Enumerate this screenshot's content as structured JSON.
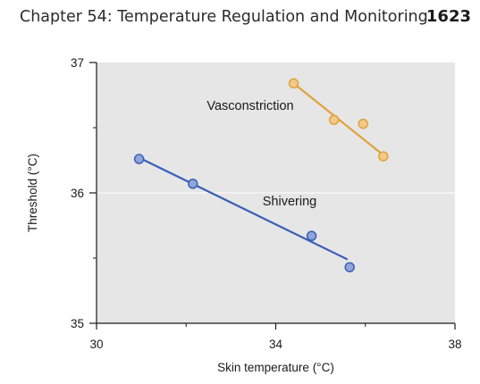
{
  "header": {
    "chapter_title": "Chapter 54: Temperature Regulation and Monitoring",
    "page_number": "1623"
  },
  "chart_data": {
    "type": "scatter",
    "xlabel": "Skin temperature (°C)",
    "ylabel": "Threshold (°C)",
    "xlim": [
      30,
      38
    ],
    "ylim": [
      35,
      37
    ],
    "x_ticks": [
      30,
      34,
      38
    ],
    "x_minor_ticks": [
      32,
      36
    ],
    "y_ticks": [
      35,
      36,
      37
    ],
    "y_minor_ticks": [
      35.5,
      36.5
    ],
    "plot_background": "#e6e6e6",
    "grid": false,
    "series": [
      {
        "name": "Vasconstriction",
        "color": "#e0a23a",
        "fill": "#f3c98a",
        "points": [
          {
            "x": 34.4,
            "y": 36.84
          },
          {
            "x": 35.3,
            "y": 36.56
          },
          {
            "x": 35.95,
            "y": 36.53
          },
          {
            "x": 36.4,
            "y": 36.28
          }
        ],
        "trend": [
          {
            "x": 34.4,
            "y": 36.84
          },
          {
            "x": 36.4,
            "y": 36.29
          }
        ]
      },
      {
        "name": "Shivering",
        "color": "#3a5fb5",
        "fill": "#8ea6db",
        "points": [
          {
            "x": 30.95,
            "y": 36.26
          },
          {
            "x": 32.15,
            "y": 36.07
          },
          {
            "x": 34.8,
            "y": 35.67
          },
          {
            "x": 35.65,
            "y": 35.43
          }
        ],
        "trend": [
          {
            "x": 30.95,
            "y": 36.27
          },
          {
            "x": 35.6,
            "y": 35.49
          }
        ]
      }
    ]
  }
}
